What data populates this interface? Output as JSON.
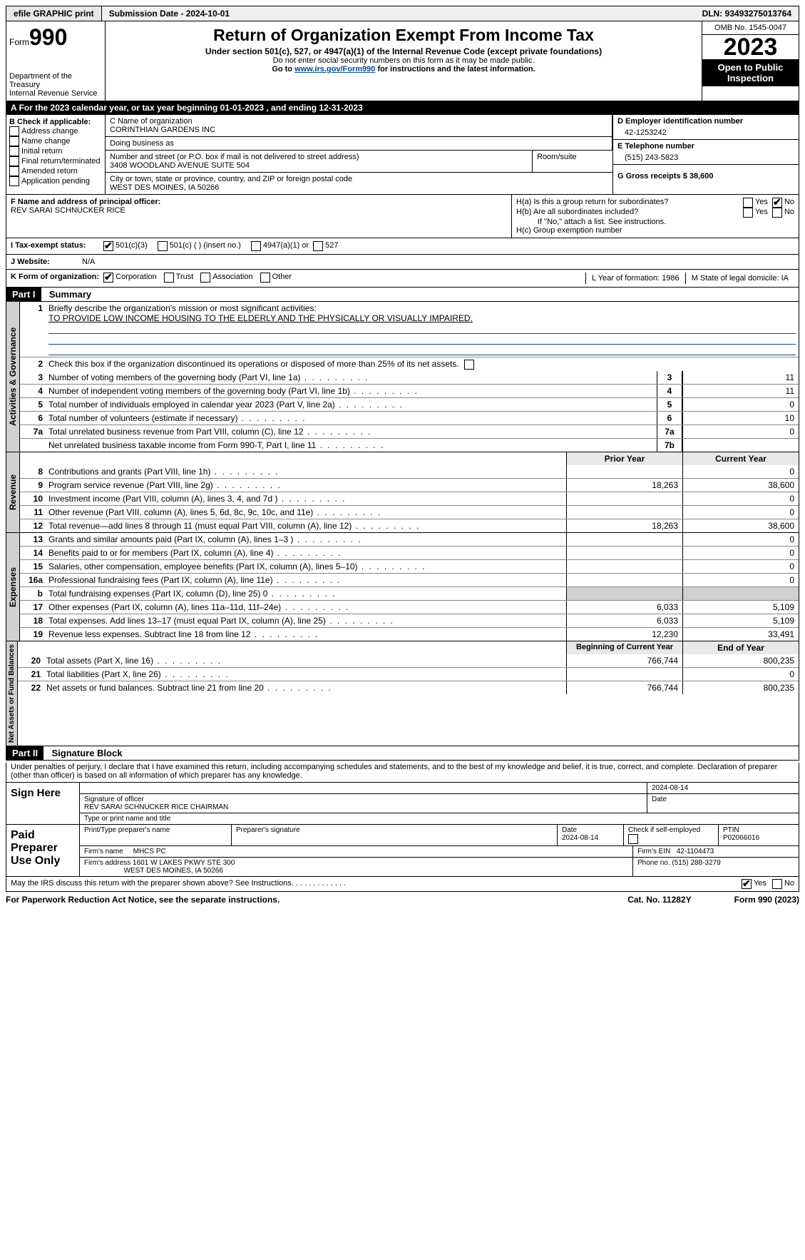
{
  "topbar": {
    "efile": "efile GRAPHIC print",
    "submission": "Submission Date - 2024-10-01",
    "dln": "DLN: 93493275013764"
  },
  "header": {
    "form_word": "Form",
    "form_num": "990",
    "dept1": "Department of the Treasury",
    "dept2": "Internal Revenue Service",
    "title": "Return of Organization Exempt From Income Tax",
    "subtitle": "Under section 501(c), 527, or 4947(a)(1) of the Internal Revenue Code (except private foundations)",
    "note1": "Do not enter social security numbers on this form as it may be made public.",
    "note2_pre": "Go to ",
    "note2_link": "www.irs.gov/Form990",
    "note2_post": " for instructions and the latest information.",
    "omb": "OMB No. 1545-0047",
    "year": "2023",
    "open": "Open to Public Inspection"
  },
  "taxyear": "For the 2023 calendar year, or tax year beginning 01-01-2023   , and ending 12-31-2023",
  "boxB": {
    "label": "B Check if applicable:",
    "opts": [
      "Address change",
      "Name change",
      "Initial return",
      "Final return/terminated",
      "Amended return",
      "Application pending"
    ]
  },
  "boxC": {
    "name_label": "C Name of organization",
    "name": "CORINTHIAN GARDENS INC",
    "dba_label": "Doing business as",
    "street_label": "Number and street (or P.O. box if mail is not delivered to street address)",
    "street": "3408 WOODLAND AVENUE SUITE 504",
    "room_label": "Room/suite",
    "city_label": "City or town, state or province, country, and ZIP or foreign postal code",
    "city": "WEST DES MOINES, IA  50266"
  },
  "boxD": {
    "label": "D Employer identification number",
    "val": "42-1253242"
  },
  "boxE": {
    "label": "E Telephone number",
    "val": "(515) 243-5823"
  },
  "boxG": {
    "label": "G Gross receipts $ 38,600"
  },
  "boxF": {
    "label": "F  Name and address of principal officer:",
    "val": "REV SARAI SCHNUCKER RICE"
  },
  "boxH": {
    "a": "H(a)  Is this a group return for subordinates?",
    "b": "H(b)  Are all subordinates included?",
    "bnote": "If \"No,\" attach a list. See instructions.",
    "c": "H(c)  Group exemption number"
  },
  "boxI": {
    "label": "I   Tax-exempt status:",
    "o1": "501(c)(3)",
    "o2": "501(c) (  ) (insert no.)",
    "o3": "4947(a)(1) or",
    "o4": "527"
  },
  "boxJ": {
    "label": "J   Website:",
    "val": "N/A"
  },
  "boxK": {
    "label": "K Form of organization:",
    "o1": "Corporation",
    "o2": "Trust",
    "o3": "Association",
    "o4": "Other"
  },
  "boxL": "L Year of formation: 1986",
  "boxM": "M State of legal domicile: IA",
  "part1": {
    "hdr": "Part I",
    "title": "Summary",
    "l1a": "Briefly describe the organization's mission or most significant activities:",
    "l1b": "TO PROVIDE LOW INCOME HOUSING TO THE ELDERLY AND THE PHYSICALLY OR VISUALLY IMPAIRED.",
    "l2": "Check this box          if the organization discontinued its operations or disposed of more than 25% of its net assets.",
    "vlab1": "Activities & Governance",
    "vlab2": "Revenue",
    "vlab3": "Expenses",
    "vlab4": "Net Assets or Fund Balances",
    "rows_gov": [
      {
        "n": "3",
        "d": "Number of voting members of the governing body (Part VI, line 1a)",
        "box": "3",
        "v": "11"
      },
      {
        "n": "4",
        "d": "Number of independent voting members of the governing body (Part VI, line 1b)",
        "box": "4",
        "v": "11"
      },
      {
        "n": "5",
        "d": "Total number of individuals employed in calendar year 2023 (Part V, line 2a)",
        "box": "5",
        "v": "0"
      },
      {
        "n": "6",
        "d": "Total number of volunteers (estimate if necessary)",
        "box": "6",
        "v": "10"
      },
      {
        "n": "7a",
        "d": "Total unrelated business revenue from Part VIII, column (C), line 12",
        "box": "7a",
        "v": "0"
      },
      {
        "n": "",
        "d": "Net unrelated business taxable income from Form 990-T, Part I, line 11",
        "box": "7b",
        "v": ""
      }
    ],
    "col_py": "Prior Year",
    "col_cy": "Current Year",
    "rows_rev": [
      {
        "n": "8",
        "d": "Contributions and grants (Part VIII, line 1h)",
        "py": "",
        "cy": "0"
      },
      {
        "n": "9",
        "d": "Program service revenue (Part VIII, line 2g)",
        "py": "18,263",
        "cy": "38,600"
      },
      {
        "n": "10",
        "d": "Investment income (Part VIII, column (A), lines 3, 4, and 7d )",
        "py": "",
        "cy": "0"
      },
      {
        "n": "11",
        "d": "Other revenue (Part VIII, column (A), lines 5, 6d, 8c, 9c, 10c, and 11e)",
        "py": "",
        "cy": "0"
      },
      {
        "n": "12",
        "d": "Total revenue—add lines 8 through 11 (must equal Part VIII, column (A), line 12)",
        "py": "18,263",
        "cy": "38,600"
      }
    ],
    "rows_exp": [
      {
        "n": "13",
        "d": "Grants and similar amounts paid (Part IX, column (A), lines 1–3 )",
        "py": "",
        "cy": "0"
      },
      {
        "n": "14",
        "d": "Benefits paid to or for members (Part IX, column (A), line 4)",
        "py": "",
        "cy": "0"
      },
      {
        "n": "15",
        "d": "Salaries, other compensation, employee benefits (Part IX, column (A), lines 5–10)",
        "py": "",
        "cy": "0"
      },
      {
        "n": "16a",
        "d": "Professional fundraising fees (Part IX, column (A), line 11e)",
        "py": "",
        "cy": "0"
      },
      {
        "n": "b",
        "d": "Total fundraising expenses (Part IX, column (D), line 25) 0",
        "py": "grey",
        "cy": "grey"
      },
      {
        "n": "17",
        "d": "Other expenses (Part IX, column (A), lines 11a–11d, 11f–24e)",
        "py": "6,033",
        "cy": "5,109"
      },
      {
        "n": "18",
        "d": "Total expenses. Add lines 13–17 (must equal Part IX, column (A), line 25)",
        "py": "6,033",
        "cy": "5,109"
      },
      {
        "n": "19",
        "d": "Revenue less expenses. Subtract line 18 from line 12",
        "py": "12,230",
        "cy": "33,491"
      }
    ],
    "col_by": "Beginning of Current Year",
    "col_ey": "End of Year",
    "rows_net": [
      {
        "n": "20",
        "d": "Total assets (Part X, line 16)",
        "py": "766,744",
        "cy": "800,235"
      },
      {
        "n": "21",
        "d": "Total liabilities (Part X, line 26)",
        "py": "",
        "cy": "0"
      },
      {
        "n": "22",
        "d": "Net assets or fund balances. Subtract line 21 from line 20",
        "py": "766,744",
        "cy": "800,235"
      }
    ]
  },
  "part2": {
    "hdr": "Part II",
    "title": "Signature Block",
    "decl": "Under penalties of perjury, I declare that I have examined this return, including accompanying schedules and statements, and to the best of my knowledge and belief, it is true, correct, and complete. Declaration of preparer (other than officer) is based on all information of which preparer has any knowledge.",
    "sign_here": "Sign Here",
    "sig_officer_label": "Signature of officer",
    "sig_officer": "REV SARAI SCHNUCKER RICE  CHAIRMAN",
    "sig_name_label": "Type or print name and title",
    "date_label": "Date",
    "date_val": "2024-08-14",
    "paid": "Paid Preparer Use Only",
    "prep_name_label": "Print/Type preparer's name",
    "prep_sig_label": "Preparer's signature",
    "prep_date_label": "Date",
    "prep_date": "2024-08-14",
    "prep_check": "Check          if self-employed",
    "ptin_label": "PTIN",
    "ptin": "P02066016",
    "firm_name_label": "Firm's name",
    "firm_name": "MHCS PC",
    "firm_ein_label": "Firm's EIN",
    "firm_ein": "42-1104473",
    "firm_addr_label": "Firm's address",
    "firm_addr1": "1601 W LAKES PKWY STE 300",
    "firm_addr2": "WEST DES MOINES, IA  50266",
    "phone_label": "Phone no.",
    "phone": "(515) 288-3279",
    "discuss": "May the IRS discuss this return with the preparer shown above? See Instructions.  .  .  .  .  .  .  .  .  .  .  .  ."
  },
  "footer": {
    "pra": "For Paperwork Reduction Act Notice, see the separate instructions.",
    "cat": "Cat. No. 11282Y",
    "form": "Form 990 (2023)"
  },
  "yn": {
    "yes": "Yes",
    "no": "No"
  }
}
